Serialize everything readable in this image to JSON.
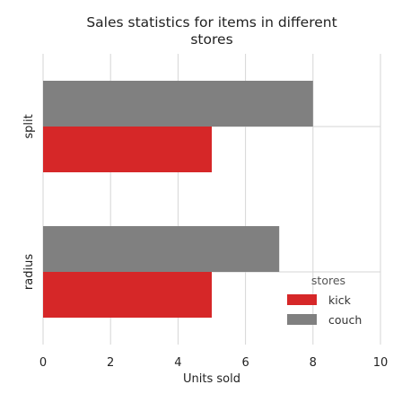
{
  "chart_data": {
    "type": "bar",
    "orientation": "horizontal",
    "title": "Sales statistics for items in different stores",
    "title_lines": [
      "Sales statistics for items in different",
      "stores"
    ],
    "xlabel": "Units sold",
    "ylabel": "",
    "categories": [
      "split",
      "radius"
    ],
    "series": [
      {
        "name": "kick",
        "color": "#d62728",
        "values": [
          5,
          5
        ]
      },
      {
        "name": "couch",
        "color": "#808080",
        "values": [
          8,
          7
        ]
      }
    ],
    "xlim": [
      0,
      10
    ],
    "xticks": [
      0,
      2,
      4,
      6,
      8,
      10
    ],
    "grid": true,
    "legend": {
      "title": "stores",
      "placement": "bottom-right"
    }
  }
}
